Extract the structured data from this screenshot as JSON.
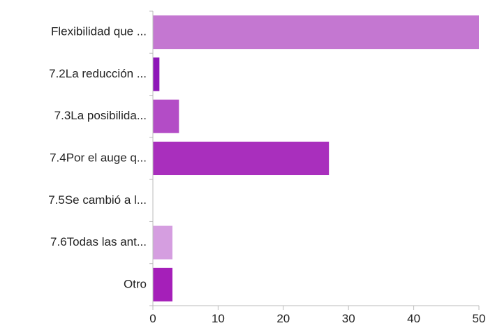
{
  "chart_data": {
    "type": "bar",
    "orientation": "horizontal",
    "categories": [
      "Flexibilidad que ...",
      "7.2La reducción ...",
      "7.3La posibilida...",
      "7.4Por el auge q...",
      "7.5Se cambió a l...",
      "7.6Todas las ant...",
      "Otro"
    ],
    "values": [
      50,
      1,
      4,
      27,
      0,
      3,
      3
    ],
    "bar_colors": [
      "#c477d1",
      "#8e17b8",
      "#b34cc6",
      "#a92fbd",
      "#a92fbd",
      "#d59ee0",
      "#a51fb9"
    ],
    "xlim": [
      0,
      50
    ],
    "xticks": [
      0,
      10,
      20,
      30,
      40,
      50
    ],
    "title": "",
    "xlabel": "",
    "ylabel": "",
    "grid": false,
    "legend": "none",
    "axis_color": "#bbbbbb"
  }
}
